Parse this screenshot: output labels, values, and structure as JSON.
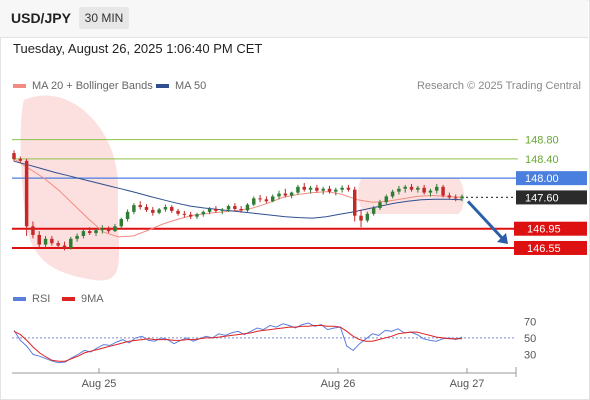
{
  "header": {
    "symbol": "USD/JPY",
    "timeframe": "30 MIN"
  },
  "date": "Tuesday, August 26, 2025 1:06:40 PM CET",
  "legend": {
    "ma20": {
      "label": "MA 20 + Bollinger Bands",
      "color": "#f28b82"
    },
    "ma50": {
      "label": "MA 50",
      "color": "#2f4f8f"
    },
    "credit": "Research © 2025 Trading Central"
  },
  "rsi_legend": {
    "rsi": {
      "label": "RSI",
      "color": "#5b7fde"
    },
    "ma9": {
      "label": "9MA",
      "color": "#dd2222"
    }
  },
  "chart_data": [
    {
      "type": "candlestick",
      "title": "USD/JPY 30 MIN",
      "ylim": [
        146.3,
        149.0
      ],
      "x_ticks": [
        "Aug 25",
        "Aug 26",
        "Aug 27"
      ],
      "current_price": "147.60",
      "levels": [
        {
          "label": "148.80",
          "value": 148.8,
          "kind": "resistance"
        },
        {
          "label": "148.40",
          "value": 148.4,
          "kind": "resistance"
        },
        {
          "label": "148.00",
          "value": 148.0,
          "kind": "pivot"
        },
        {
          "label": "146.95",
          "value": 146.95,
          "kind": "support"
        },
        {
          "label": "146.55",
          "value": 146.55,
          "kind": "support"
        }
      ],
      "colors": {
        "up": "#2e7d32",
        "down": "#c62828",
        "resistance": "#8bc34a",
        "pivot": "#4a7fe0",
        "support": "#dd1111",
        "arrow": "#2c5fa8",
        "bands": "#fbd9d9"
      },
      "candles": [
        [
          148.52,
          148.58,
          148.35,
          148.4
        ],
        [
          148.4,
          148.45,
          148.32,
          148.36
        ],
        [
          148.36,
          148.4,
          146.8,
          147.0
        ],
        [
          147.0,
          147.1,
          146.75,
          146.82
        ],
        [
          146.82,
          146.9,
          146.55,
          146.62
        ],
        [
          146.62,
          146.8,
          146.55,
          146.74
        ],
        [
          146.74,
          146.8,
          146.6,
          146.65
        ],
        [
          146.65,
          146.7,
          146.55,
          146.6
        ],
        [
          146.6,
          146.68,
          146.5,
          146.55
        ],
        [
          146.55,
          146.78,
          146.52,
          146.74
        ],
        [
          146.74,
          146.85,
          146.68,
          146.8
        ],
        [
          146.8,
          146.95,
          146.75,
          146.9
        ],
        [
          146.9,
          146.98,
          146.82,
          146.86
        ],
        [
          146.86,
          146.95,
          146.8,
          146.92
        ],
        [
          146.92,
          147.02,
          146.85,
          146.96
        ],
        [
          146.96,
          147.0,
          146.86,
          146.9
        ],
        [
          146.9,
          147.05,
          146.88,
          147.0
        ],
        [
          147.0,
          147.18,
          146.95,
          147.15
        ],
        [
          147.15,
          147.35,
          147.1,
          147.3
        ],
        [
          147.3,
          147.48,
          147.25,
          147.44
        ],
        [
          147.44,
          147.52,
          147.35,
          147.4
        ],
        [
          147.4,
          147.46,
          147.3,
          147.34
        ],
        [
          147.34,
          147.4,
          147.22,
          147.28
        ],
        [
          147.28,
          147.38,
          147.25,
          147.35
        ],
        [
          147.35,
          147.45,
          147.3,
          147.4
        ],
        [
          147.4,
          147.44,
          147.28,
          147.32
        ],
        [
          147.32,
          147.36,
          147.22,
          147.26
        ],
        [
          147.26,
          147.32,
          147.18,
          147.24
        ],
        [
          147.24,
          147.3,
          147.15,
          147.2
        ],
        [
          147.2,
          147.28,
          147.15,
          147.25
        ],
        [
          147.25,
          147.33,
          147.2,
          147.3
        ],
        [
          147.3,
          147.4,
          147.25,
          147.36
        ],
        [
          147.36,
          147.42,
          147.28,
          147.32
        ],
        [
          147.32,
          147.38,
          147.25,
          147.35
        ],
        [
          147.35,
          147.45,
          147.3,
          147.42
        ],
        [
          147.42,
          147.48,
          147.32,
          147.36
        ],
        [
          147.36,
          147.42,
          147.28,
          147.33
        ],
        [
          147.33,
          147.48,
          147.3,
          147.45
        ],
        [
          147.45,
          147.62,
          147.42,
          147.58
        ],
        [
          147.58,
          147.65,
          147.5,
          147.56
        ],
        [
          147.56,
          147.62,
          147.48,
          147.52
        ],
        [
          147.52,
          147.66,
          147.5,
          147.62
        ],
        [
          147.62,
          147.74,
          147.56,
          147.68
        ],
        [
          147.68,
          147.78,
          147.6,
          147.64
        ],
        [
          147.64,
          147.72,
          147.58,
          147.7
        ],
        [
          147.7,
          147.86,
          147.66,
          147.82
        ],
        [
          147.82,
          147.9,
          147.72,
          147.76
        ],
        [
          147.76,
          147.84,
          147.68,
          147.8
        ],
        [
          147.8,
          147.86,
          147.7,
          147.74
        ],
        [
          147.74,
          147.82,
          147.66,
          147.78
        ],
        [
          147.78,
          147.84,
          147.68,
          147.72
        ],
        [
          147.72,
          147.8,
          147.64,
          147.76
        ],
        [
          147.76,
          147.85,
          147.7,
          147.8
        ],
        [
          147.8,
          147.86,
          147.72,
          147.76
        ],
        [
          147.76,
          147.82,
          147.1,
          147.22
        ],
        [
          147.22,
          147.35,
          146.98,
          147.12
        ],
        [
          147.12,
          147.3,
          147.08,
          147.26
        ],
        [
          147.26,
          147.42,
          147.22,
          147.38
        ],
        [
          147.38,
          147.55,
          147.34,
          147.5
        ],
        [
          147.5,
          147.66,
          147.46,
          147.62
        ],
        [
          147.62,
          147.76,
          147.58,
          147.72
        ],
        [
          147.72,
          147.84,
          147.66,
          147.78
        ],
        [
          147.78,
          147.86,
          147.7,
          147.82
        ],
        [
          147.82,
          147.88,
          147.72,
          147.76
        ],
        [
          147.76,
          147.84,
          147.7,
          147.8
        ],
        [
          147.8,
          147.86,
          147.66,
          147.7
        ],
        [
          147.7,
          147.78,
          147.62,
          147.74
        ],
        [
          147.74,
          147.88,
          147.68,
          147.82
        ],
        [
          147.82,
          147.86,
          147.6,
          147.64
        ],
        [
          147.64,
          147.7,
          147.56,
          147.6
        ],
        [
          147.6,
          147.66,
          147.52,
          147.58
        ],
        [
          147.58,
          147.66,
          147.52,
          147.62
        ]
      ],
      "ma50": [
        148.35,
        148.28,
        148.2,
        148.12,
        148.05,
        147.98,
        147.91,
        147.84,
        147.77,
        147.7,
        147.62,
        147.55,
        147.48,
        147.42,
        147.38,
        147.35,
        147.32,
        147.29,
        147.26,
        147.23,
        147.2,
        147.18,
        147.17,
        147.2,
        147.25,
        147.3,
        147.36,
        147.42,
        147.48,
        147.52,
        147.55,
        147.56,
        147.56,
        147.55
      ],
      "ma20": [
        148.4,
        148.2,
        148.0,
        147.75,
        147.45,
        147.15,
        146.88,
        146.78,
        146.8,
        146.92,
        147.05,
        147.15,
        147.23,
        147.27,
        147.3,
        147.33,
        147.38,
        147.48,
        147.6,
        147.66,
        147.7,
        147.72,
        147.66,
        147.55,
        147.5,
        147.52,
        147.57,
        147.62,
        147.64,
        147.62,
        147.6
      ],
      "forecast": {
        "from": 147.6,
        "to": 146.55
      }
    },
    {
      "type": "line",
      "title": "RSI",
      "ylim": [
        15,
        80
      ],
      "y_ticks": [
        70,
        50,
        30
      ],
      "series": [
        {
          "name": "RSI",
          "values": [
            59,
            47,
            40,
            30,
            28,
            25,
            22,
            20,
            21,
            26,
            30,
            35,
            33,
            38,
            42,
            41,
            45,
            48,
            44,
            50,
            52,
            47,
            46,
            50,
            48,
            43,
            47,
            50,
            46,
            49,
            52,
            50,
            55,
            53,
            56,
            58,
            54,
            58,
            62,
            60,
            65,
            63,
            67,
            65,
            62,
            66,
            68,
            64,
            66,
            60,
            62,
            63,
            40,
            35,
            43,
            49,
            55,
            53,
            59,
            58,
            61,
            56,
            57,
            54,
            49,
            47,
            46,
            49,
            50,
            48,
            51
          ]
        },
        {
          "name": "9MA",
          "values": [
            58,
            54,
            47,
            39,
            32,
            27,
            23,
            22,
            22,
            25,
            28,
            32,
            34,
            36,
            38,
            40,
            42,
            44,
            46,
            47,
            48,
            49,
            48,
            48,
            48,
            47,
            47,
            48,
            48,
            49,
            50,
            50,
            51,
            52,
            53,
            54,
            55,
            56,
            58,
            59,
            60,
            61,
            62,
            63,
            63,
            64,
            64,
            65,
            65,
            64,
            64,
            63,
            58,
            52,
            48,
            46,
            46,
            48,
            50,
            52,
            55,
            56,
            57,
            57,
            55,
            53,
            51,
            50,
            49,
            49,
            49
          ]
        }
      ]
    }
  ]
}
